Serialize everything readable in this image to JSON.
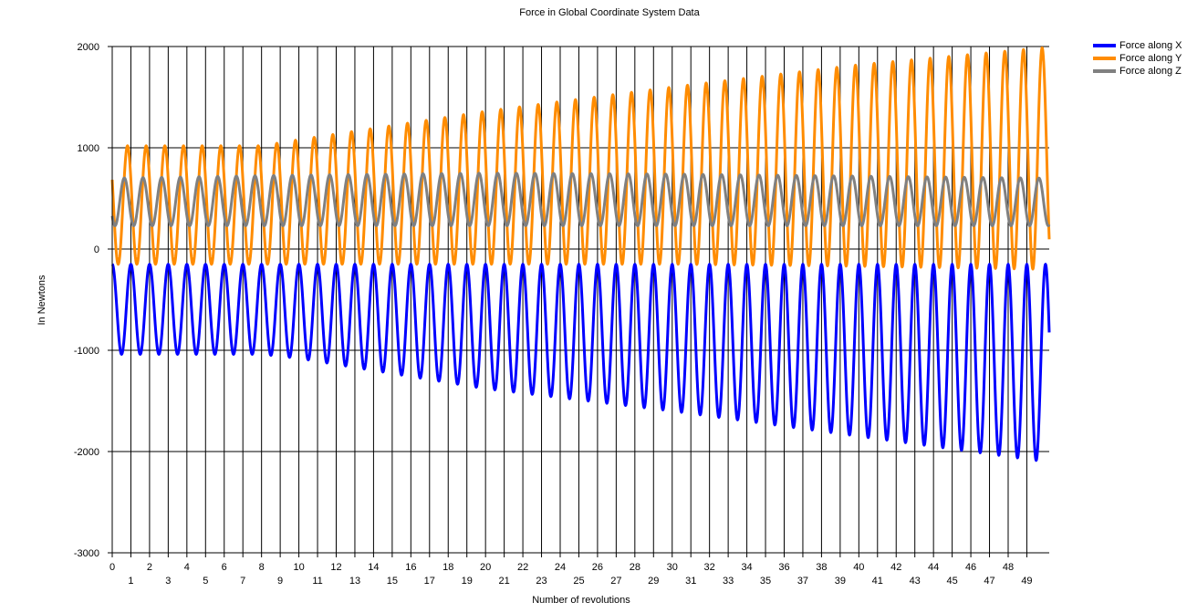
{
  "chart_data": {
    "type": "line",
    "title": "Force in Global Coordinate System Data",
    "xlabel": "Number of revolutions",
    "ylabel": "In Newtons",
    "xlim": [
      0,
      50.2
    ],
    "ylim": [
      -3000,
      2000
    ],
    "xticks": [
      0,
      1,
      2,
      3,
      4,
      5,
      6,
      7,
      8,
      9,
      10,
      11,
      12,
      13,
      14,
      15,
      16,
      17,
      18,
      19,
      20,
      21,
      22,
      23,
      24,
      25,
      26,
      27,
      28,
      29,
      30,
      31,
      32,
      33,
      34,
      35,
      36,
      37,
      38,
      39,
      40,
      41,
      42,
      43,
      44,
      45,
      46,
      47,
      48,
      49
    ],
    "yticks": [
      -3000,
      -2000,
      -1000,
      0,
      1000,
      2000
    ],
    "grid": true,
    "legend_position": "top-right",
    "series": [
      {
        "name": "Force along X",
        "color": "#0000ff",
        "cycles_per_revolution": 1,
        "x_envelope": [
          0,
          8,
          10,
          20,
          30,
          40,
          50
        ],
        "max_envelope": [
          -150,
          -150,
          -150,
          -150,
          -150,
          -150,
          -150
        ],
        "min_envelope": [
          -1040,
          -1040,
          -1080,
          -1380,
          -1600,
          -1850,
          -2100
        ]
      },
      {
        "name": "Force along Y",
        "color": "#ff8c00",
        "cycles_per_revolution": 1,
        "x_envelope": [
          0,
          8,
          10,
          20,
          30,
          40,
          50
        ],
        "max_envelope": [
          1020,
          1020,
          1080,
          1360,
          1600,
          1820,
          1990
        ],
        "min_envelope": [
          -150,
          -150,
          -150,
          -150,
          -150,
          -170,
          -200
        ]
      },
      {
        "name": "Force along Z",
        "color": "#808080",
        "cycles_per_revolution": 1,
        "x_envelope": [
          0,
          10,
          20,
          30,
          40,
          50
        ],
        "max_envelope": [
          700,
          730,
          750,
          740,
          720,
          700
        ],
        "min_envelope": [
          230,
          230,
          230,
          230,
          230,
          230
        ]
      }
    ]
  }
}
